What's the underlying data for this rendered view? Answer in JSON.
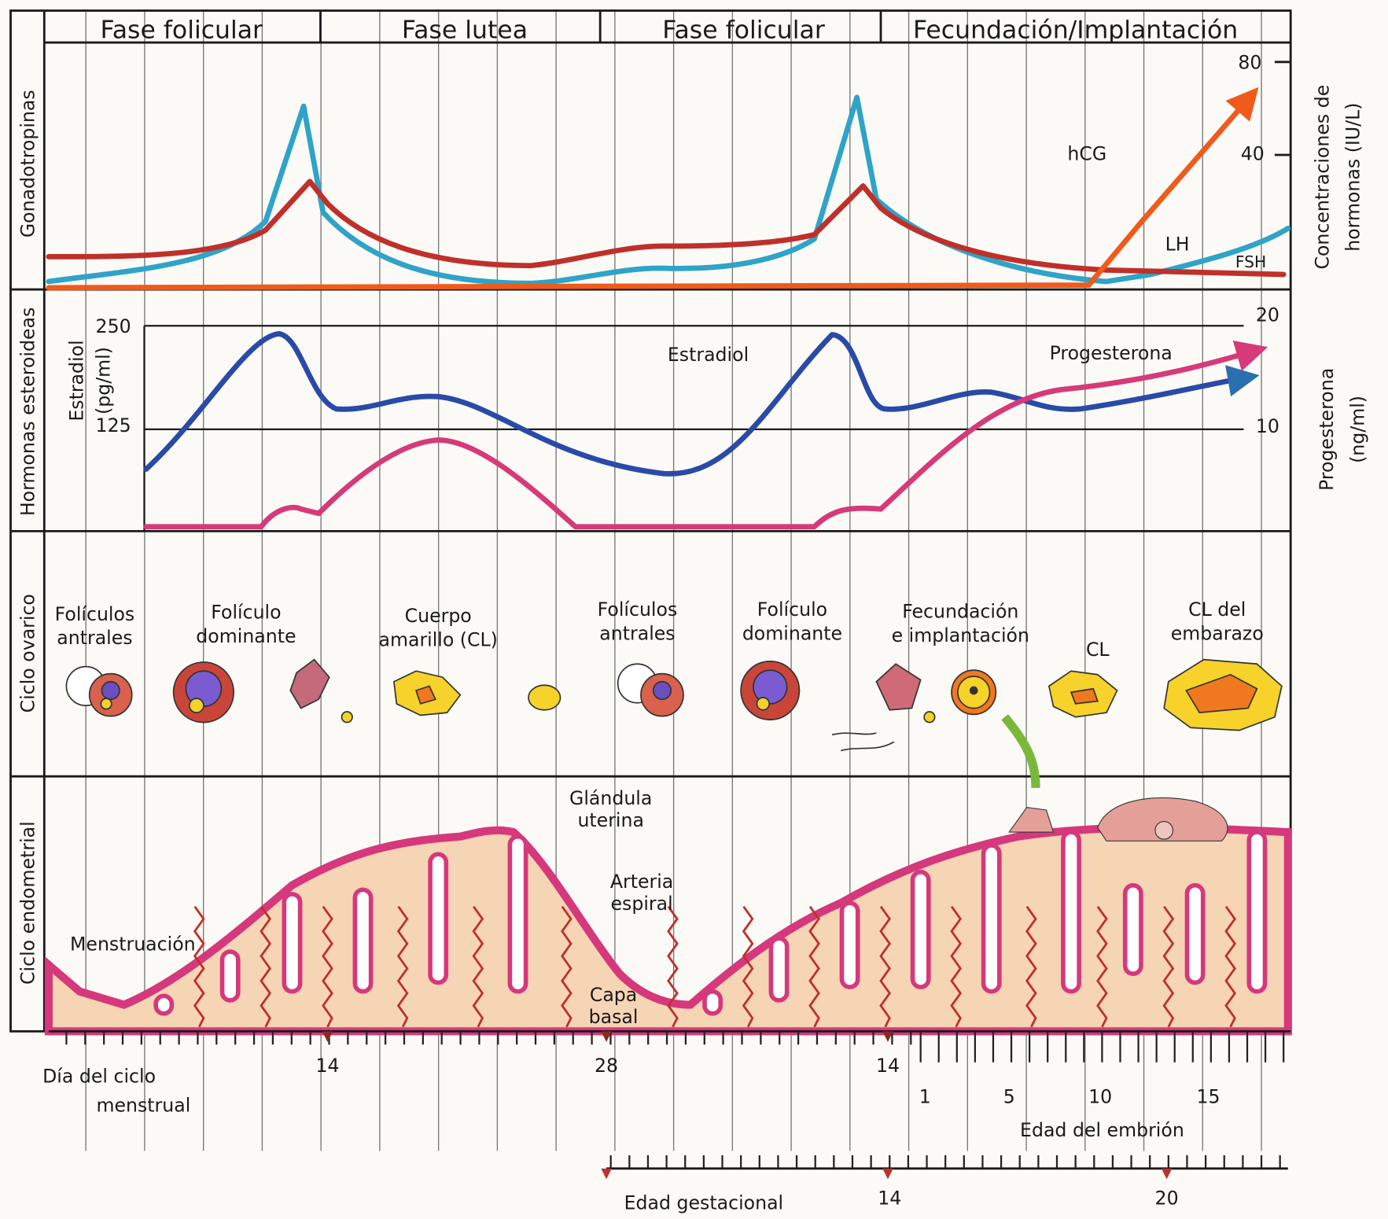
{
  "phases": [
    "Fase folicular",
    "Fase lutea",
    "Fase folicular",
    "Fecundación/Implantación"
  ],
  "rows": [
    "Gonadotropinas",
    "Hormonas esteroideas",
    "Ciclo ovarico",
    "Ciclo endometrial"
  ],
  "gonadotropins": {
    "labels": [
      "hCG",
      "LH",
      "FSH"
    ],
    "ticks": [
      "80",
      "40"
    ],
    "axis_title": [
      "Concentraciones de",
      "hormonas (IU/L)"
    ]
  },
  "steroids": {
    "labels": [
      "Estradiol",
      "Progesterona"
    ],
    "left_title": [
      "Estradiol",
      "(pg/ml)"
    ],
    "left_ticks": [
      "250",
      "125"
    ],
    "right_ticks": [
      "20",
      "10"
    ],
    "right_title": [
      "Progesterona",
      "(ng/ml)"
    ]
  },
  "ovarian": [
    [
      "Folículos",
      "antrales"
    ],
    [
      "Folículo",
      "dominante"
    ],
    [
      "Cuerpo",
      "amarillo (CL)"
    ],
    [
      "Folículos",
      "antrales"
    ],
    [
      "Folículo",
      "dominante"
    ],
    [
      "Fecundación",
      "e implantación"
    ],
    [
      "CL"
    ],
    [
      "CL del",
      "embarazo"
    ]
  ],
  "endometrial": [
    [
      "Glándula",
      "uterina"
    ],
    [
      "Arteria",
      "espiral"
    ],
    [
      "Menstruación"
    ],
    [
      "Capa",
      "basal"
    ]
  ],
  "axes": {
    "cycle_title": [
      "Día del ciclo",
      "menstrual"
    ],
    "cycle_ticks": [
      "14",
      "28",
      "14"
    ],
    "embryo_title": "Edad del embrión",
    "embryo_ticks": [
      "1",
      "5",
      "10",
      "15"
    ],
    "gestational_title": "Edad gestacional",
    "gestational_ticks": [
      "14",
      "20"
    ]
  }
}
